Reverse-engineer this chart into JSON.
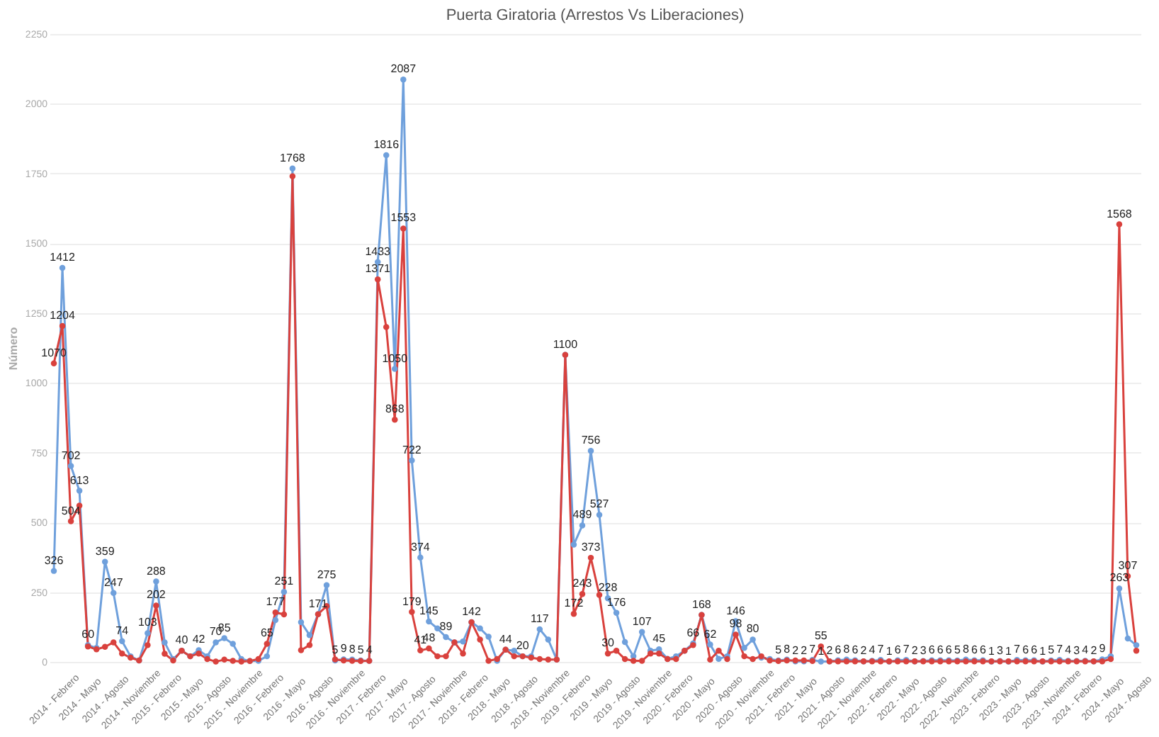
{
  "chart_data": {
    "type": "line",
    "title": "Puerta Giratoria (Arrestos Vs Liberaciones)",
    "ylabel": "Número",
    "categories": [
      "2014 - Febrero",
      null,
      null,
      "2014 - Mayo",
      null,
      null,
      "2014 - Agosto",
      null,
      null,
      "2014 - Noviembre",
      null,
      null,
      "2015 - Febrero",
      null,
      null,
      "2015 - Mayo",
      null,
      null,
      "2015 - Agosto",
      null,
      null,
      "2015 - Noviembre",
      null,
      null,
      "2016 - Febrero",
      null,
      null,
      "2016 - Mayo",
      null,
      null,
      "2016 - Agosto",
      null,
      null,
      "2016 - Noviembre",
      null,
      null,
      "2017 - Febrero",
      null,
      null,
      "2017 - Mayo",
      null,
      null,
      "2017 - Agosto",
      null,
      null,
      "2017 - Noviembre",
      null,
      null,
      "2018 - Febrero",
      null,
      null,
      "2018 - Mayo",
      null,
      null,
      "2018 - Agosto",
      null,
      null,
      "2018 - Noviembre",
      null,
      null,
      "2019 - Febrero",
      null,
      null,
      "2019 - Mayo",
      null,
      null,
      "2019 - Agosto",
      null,
      null,
      "2019 - Noviembre",
      null,
      null,
      "2020 - Febrero",
      null,
      null,
      "2020 - Mayo",
      null,
      null,
      "2020 - Agosto",
      null,
      null,
      "2020 - Noviembre",
      null,
      null,
      "2021 - Febrero",
      null,
      null,
      "2021 - Mayo",
      null,
      null,
      "2021 - Agosto",
      null,
      null,
      "2021 - Noviembre",
      null,
      null,
      "2022 - Febrero",
      null,
      null,
      "2022 - Mayo",
      null,
      null,
      "2022 - Agosto",
      null,
      null,
      "2022 - Noviembre",
      null,
      null,
      "2023 - Febrero",
      null,
      null,
      "2023 - Mayo",
      null,
      null,
      "2023 - Agosto",
      null,
      null,
      "2023 - Noviembre",
      null,
      null,
      "2024 - Febrero",
      null,
      null,
      "2024 - Mayo",
      null,
      null,
      "2024 - Agosto",
      null
    ],
    "series": [
      {
        "color": "#6fa0dc",
        "values": [
          326,
          1412,
          702,
          613,
          60,
          50,
          359,
          247,
          74,
          20,
          5,
          103,
          288,
          70,
          10,
          40,
          20,
          42,
          20,
          70,
          85,
          65,
          10,
          3,
          4,
          20,
          150,
          251,
          1768,
          142,
          96,
          171,
          275,
          5,
          9,
          8,
          5,
          4,
          1433,
          1816,
          1050,
          2087,
          722,
          374,
          145,
          120,
          89,
          70,
          73,
          142,
          120,
          90,
          4,
          44,
          40,
          20,
          20,
          117,
          80,
          8,
          1100,
          420,
          489,
          756,
          527,
          228,
          176,
          71,
          20,
          107,
          40,
          45,
          11,
          20,
          40,
          66,
          168,
          62,
          11,
          20,
          146,
          50,
          80,
          15,
          10,
          5,
          8,
          2,
          2,
          7,
          1,
          2,
          6,
          8,
          6,
          2,
          4,
          7,
          1,
          6,
          7,
          2,
          3,
          6,
          6,
          6,
          5,
          8,
          6,
          6,
          1,
          3,
          1,
          7,
          6,
          6,
          1,
          5,
          7,
          4,
          3,
          4,
          2,
          9,
          20,
          263,
          84,
          60
        ],
        "value_labels": [
          "326",
          "1412",
          "702",
          "613",
          "60",
          null,
          "359",
          "247",
          "74",
          null,
          null,
          "103",
          "288",
          null,
          null,
          "40",
          null,
          "42",
          null,
          "70",
          "85",
          null,
          null,
          null,
          null,
          null,
          null,
          "251",
          "1768",
          null,
          null,
          null,
          "275",
          "5",
          "9",
          "8",
          "5",
          "4",
          "1433",
          "1816",
          "1050",
          "2087",
          "722",
          "374",
          "145",
          null,
          "89",
          null,
          null,
          "142",
          null,
          null,
          null,
          "44",
          null,
          "20",
          null,
          "117",
          null,
          null,
          "1100",
          null,
          "489",
          "756",
          "527",
          "228",
          "176",
          null,
          null,
          "107",
          null,
          "45",
          null,
          null,
          null,
          "66",
          "168",
          "62",
          null,
          null,
          "146",
          null,
          "80",
          null,
          null,
          "5",
          "8",
          "2",
          "2",
          "7",
          "1",
          "2",
          "6",
          "8",
          "6",
          "2",
          "4",
          "7",
          "1",
          "6",
          "7",
          "2",
          "3",
          "6",
          "6",
          "6",
          "5",
          "8",
          "6",
          "6",
          "1",
          "3",
          "1",
          "7",
          "6",
          "6",
          "1",
          "5",
          "7",
          "4",
          "3",
          "4",
          "2",
          "9",
          null,
          "263",
          null,
          null
        ]
      },
      {
        "color": "#d9413d",
        "values": [
          1070,
          1204,
          504,
          560,
          55,
          45,
          54,
          70,
          30,
          15,
          5,
          60,
          202,
          29,
          5,
          40,
          20,
          30,
          10,
          1,
          8,
          4,
          1,
          3,
          10,
          65,
          177,
          170,
          1740,
          42,
          60,
          171,
          200,
          9,
          5,
          4,
          3,
          4,
          1371,
          1200,
          868,
          1553,
          179,
          41,
          48,
          20,
          20,
          70,
          30,
          142,
          80,
          4,
          10,
          44,
          20,
          20,
          15,
          10,
          8,
          8,
          1100,
          172,
          243,
          373,
          240,
          30,
          40,
          10,
          4,
          4,
          30,
          30,
          10,
          10,
          40,
          60,
          168,
          8,
          40,
          10,
          98,
          20,
          10,
          20,
          5,
          3,
          5,
          5,
          5,
          3,
          55,
          2,
          2,
          2,
          2,
          2,
          2,
          2,
          2,
          2,
          2,
          2,
          2,
          2,
          2,
          2,
          2,
          2,
          2,
          2,
          2,
          2,
          2,
          2,
          2,
          2,
          2,
          2,
          2,
          2,
          2,
          2,
          2,
          2,
          10,
          1568,
          307,
          40
        ],
        "value_labels": [
          "1070",
          "1204",
          "504",
          null,
          null,
          null,
          null,
          null,
          null,
          null,
          null,
          null,
          "202",
          null,
          null,
          null,
          null,
          null,
          null,
          null,
          null,
          null,
          null,
          null,
          null,
          "65",
          "177",
          null,
          null,
          null,
          null,
          "171",
          null,
          null,
          null,
          null,
          null,
          null,
          "1371",
          null,
          "868",
          "1553",
          "179",
          "41",
          "48",
          null,
          null,
          null,
          null,
          null,
          null,
          null,
          null,
          null,
          null,
          null,
          null,
          null,
          null,
          null,
          null,
          "172",
          "243",
          "373",
          null,
          "30",
          null,
          null,
          null,
          null,
          null,
          null,
          null,
          null,
          null,
          null,
          null,
          null,
          null,
          null,
          "98",
          null,
          null,
          null,
          null,
          null,
          null,
          null,
          null,
          null,
          "55",
          null,
          null,
          null,
          null,
          null,
          null,
          null,
          null,
          null,
          null,
          null,
          null,
          null,
          null,
          null,
          null,
          null,
          null,
          null,
          null,
          null,
          null,
          null,
          null,
          null,
          null,
          null,
          null,
          null,
          null,
          null,
          null,
          null,
          null,
          "1568",
          "307",
          null
        ]
      }
    ],
    "ylim": [
      0,
      2250
    ],
    "yticks": [
      0,
      250,
      500,
      750,
      1000,
      1250,
      1500,
      1750,
      2000,
      2250
    ],
    "grid": "y",
    "marker": "circle",
    "line_style": "solid"
  }
}
